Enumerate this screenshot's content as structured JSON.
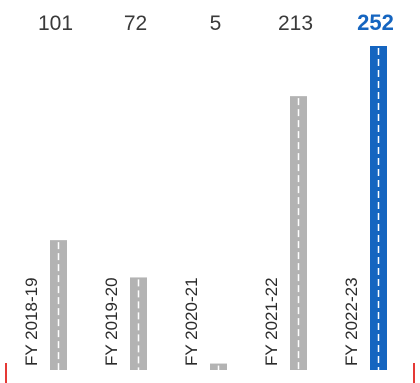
{
  "chart_data": {
    "type": "bar",
    "categories": [
      "FY 2018-19",
      "FY 2019-20",
      "FY 2020-21",
      "FY 2021-22",
      "FY 2022-23"
    ],
    "values": [
      101,
      72,
      5,
      213,
      252
    ],
    "value_labels": [
      "101",
      "72",
      "5",
      "213",
      "252"
    ],
    "ylim": [
      0,
      252
    ],
    "highlight_index": 4,
    "grid": false,
    "colors": {
      "bar": "#b3b3b3",
      "highlight_bar": "#1565c0",
      "value_label": "#3a3a3a",
      "highlight_label": "#1565c0",
      "category_label": "#2b2b2b",
      "dash": "#ffffff",
      "edge_marker": "#e53935"
    }
  }
}
